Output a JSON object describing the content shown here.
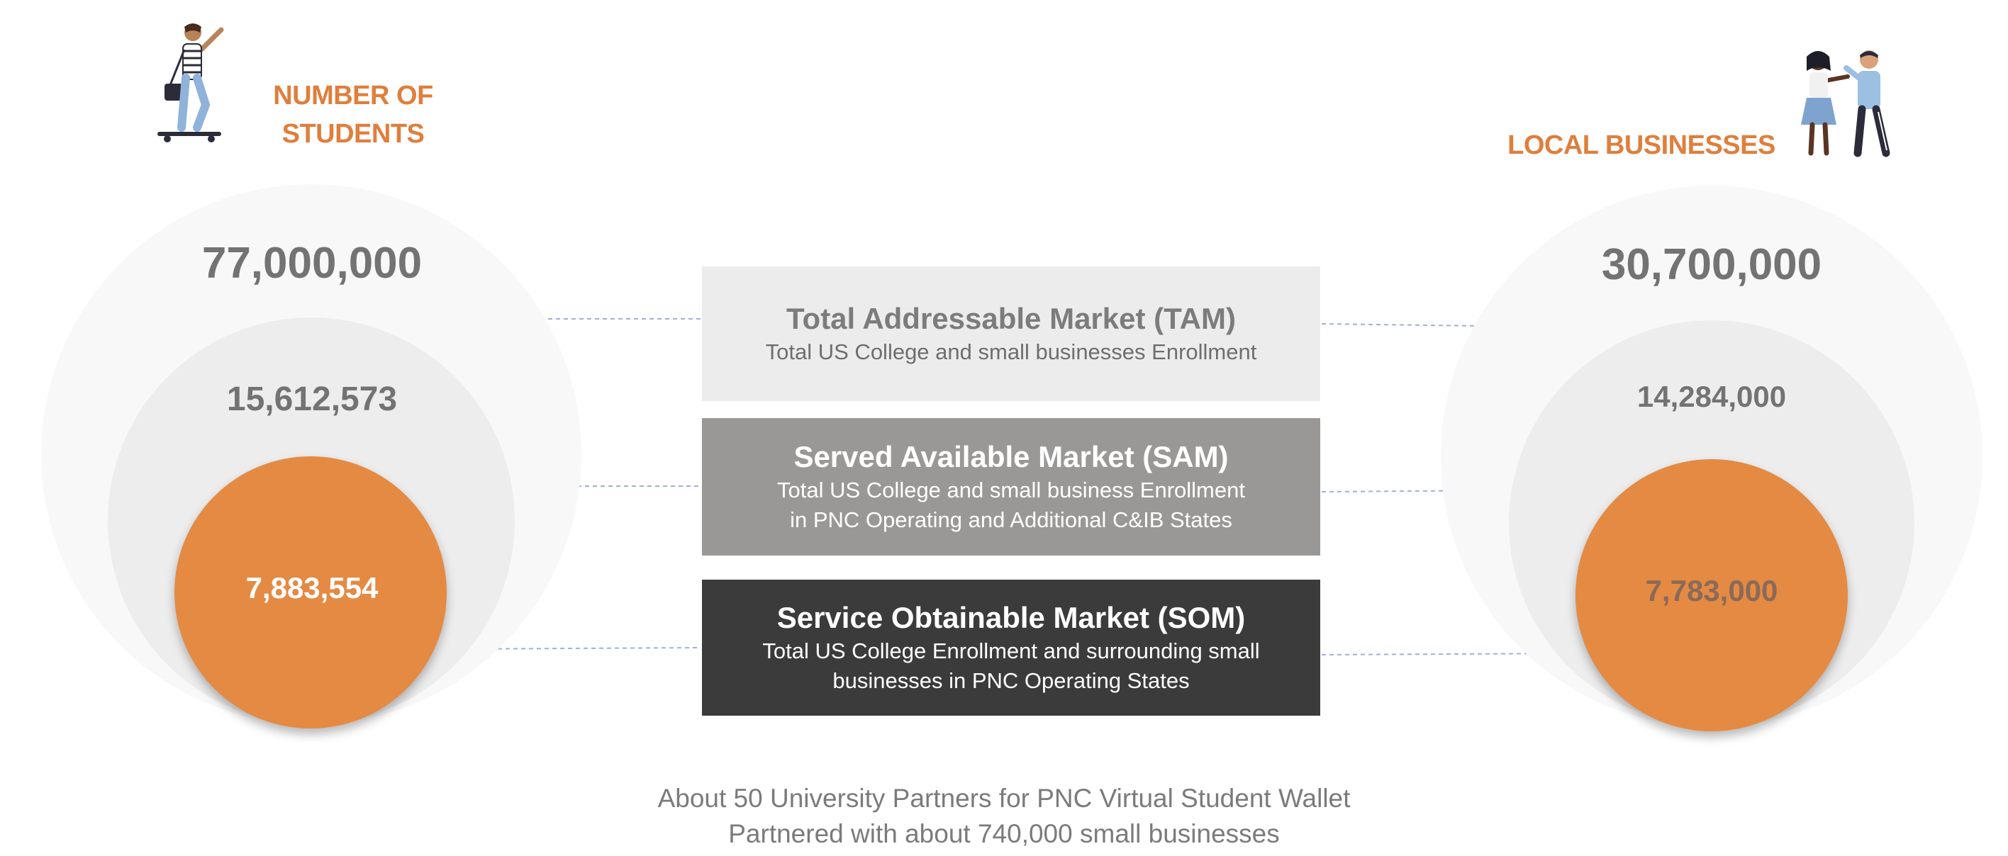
{
  "students": {
    "heading_line1": "NUMBER OF",
    "heading_line2": "STUDENTS",
    "tam_value": "77,000,000",
    "sam_value": "15,612,573",
    "som_value": "7,883,554"
  },
  "businesses": {
    "heading": "LOCAL BUSINESSES",
    "tam_value": "30,700,000",
    "sam_value": "14,284,000",
    "som_value": "7,783,000"
  },
  "tam": {
    "title": "Total Addressable Market (TAM)",
    "subtitle": "Total US College and small businesses Enrollment"
  },
  "sam": {
    "title": "Served Available Market (SAM)",
    "subtitle_line1": "Total US College and small business Enrollment",
    "subtitle_line2": "in PNC Operating and Additional C&IB States"
  },
  "som": {
    "title": "Service Obtainable Market (SOM)",
    "subtitle_line1": "Total US College Enrollment and surrounding small",
    "subtitle_line2": "businesses in PNC Operating States"
  },
  "footer": {
    "line1": "About 50 University Partners for PNC Virtual Student Wallet",
    "line2": "Partnered with about 740,000 small businesses"
  },
  "colors": {
    "accent_orange": "#e58a43",
    "tam_box": "#ececec",
    "sam_box": "#999897",
    "som_box": "#3c3b3b",
    "number_gray": "#737373"
  },
  "icons": {
    "left": "skateboarder-student-illustration",
    "right": "two-people-chatting-illustration"
  }
}
